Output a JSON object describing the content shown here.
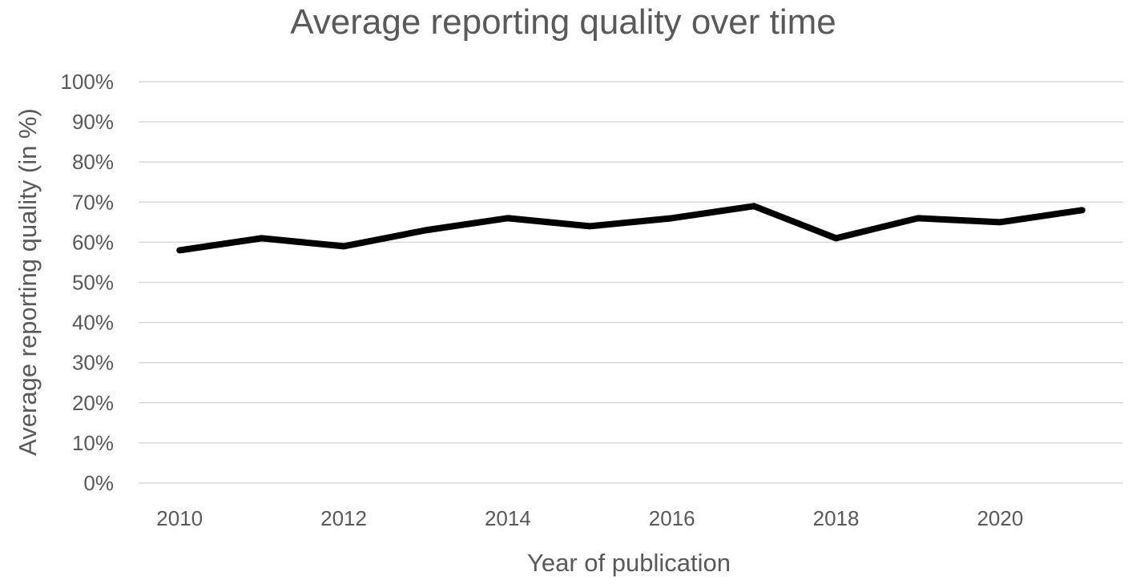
{
  "chart_data": {
    "type": "line",
    "title": "Average reporting quality over time",
    "xlabel": "Year of publication",
    "ylabel": "Average reporting quality (in %)",
    "x": [
      2010,
      2011,
      2012,
      2013,
      2014,
      2015,
      2016,
      2017,
      2018,
      2019,
      2020,
      2021
    ],
    "x_tick_labels": [
      "2010",
      "2012",
      "2014",
      "2016",
      "2018",
      "2020"
    ],
    "y_tick_labels": [
      "0%",
      "10%",
      "20%",
      "30%",
      "40%",
      "50%",
      "60%",
      "70%",
      "80%",
      "90%",
      "100%"
    ],
    "ylim": [
      0,
      100
    ],
    "grid": true,
    "legend": "none",
    "series": [
      {
        "values": [
          58,
          61,
          59,
          63,
          66,
          64,
          66,
          69,
          61,
          66,
          65,
          68
        ],
        "color": "#000000"
      }
    ]
  }
}
